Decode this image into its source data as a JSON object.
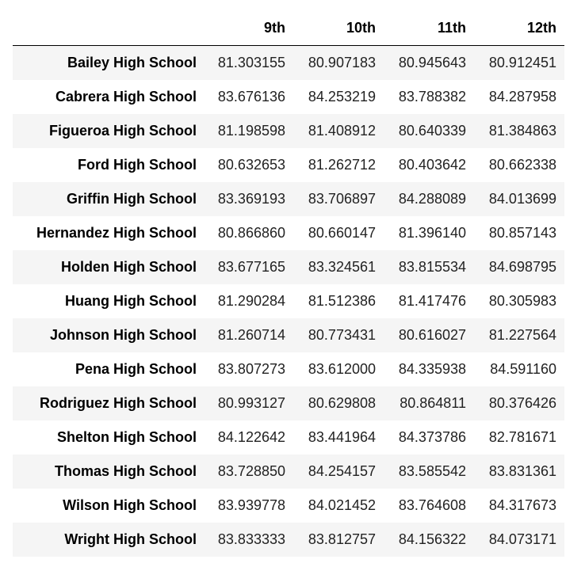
{
  "table": {
    "columns": [
      "",
      "9th",
      "10th",
      "11th",
      "12th"
    ],
    "rows": [
      {
        "school": "Bailey High School",
        "values": [
          "81.303155",
          "80.907183",
          "80.945643",
          "80.912451"
        ]
      },
      {
        "school": "Cabrera High School",
        "values": [
          "83.676136",
          "84.253219",
          "83.788382",
          "84.287958"
        ]
      },
      {
        "school": "Figueroa High School",
        "values": [
          "81.198598",
          "81.408912",
          "80.640339",
          "81.384863"
        ]
      },
      {
        "school": "Ford High School",
        "values": [
          "80.632653",
          "81.262712",
          "80.403642",
          "80.662338"
        ]
      },
      {
        "school": "Griffin High School",
        "values": [
          "83.369193",
          "83.706897",
          "84.288089",
          "84.013699"
        ]
      },
      {
        "school": "Hernandez High School",
        "values": [
          "80.866860",
          "80.660147",
          "81.396140",
          "80.857143"
        ]
      },
      {
        "school": "Holden High School",
        "values": [
          "83.677165",
          "83.324561",
          "83.815534",
          "84.698795"
        ]
      },
      {
        "school": "Huang High School",
        "values": [
          "81.290284",
          "81.512386",
          "81.417476",
          "80.305983"
        ]
      },
      {
        "school": "Johnson High School",
        "values": [
          "81.260714",
          "80.773431",
          "80.616027",
          "81.227564"
        ]
      },
      {
        "school": "Pena High School",
        "values": [
          "83.807273",
          "83.612000",
          "84.335938",
          "84.591160"
        ]
      },
      {
        "school": "Rodriguez High School",
        "values": [
          "80.993127",
          "80.629808",
          "80.864811",
          "80.376426"
        ]
      },
      {
        "school": "Shelton High School",
        "values": [
          "84.122642",
          "83.441964",
          "84.373786",
          "82.781671"
        ]
      },
      {
        "school": "Thomas High School",
        "values": [
          "83.728850",
          "84.254157",
          "83.585542",
          "83.831361"
        ]
      },
      {
        "school": "Wilson High School",
        "values": [
          "83.939778",
          "84.021452",
          "83.764608",
          "84.317673"
        ]
      },
      {
        "school": "Wright High School",
        "values": [
          "83.833333",
          "83.812757",
          "84.156322",
          "84.073171"
        ]
      }
    ]
  },
  "colors": {
    "stripe": "#f5f5f5",
    "header_rule": "#000000"
  }
}
